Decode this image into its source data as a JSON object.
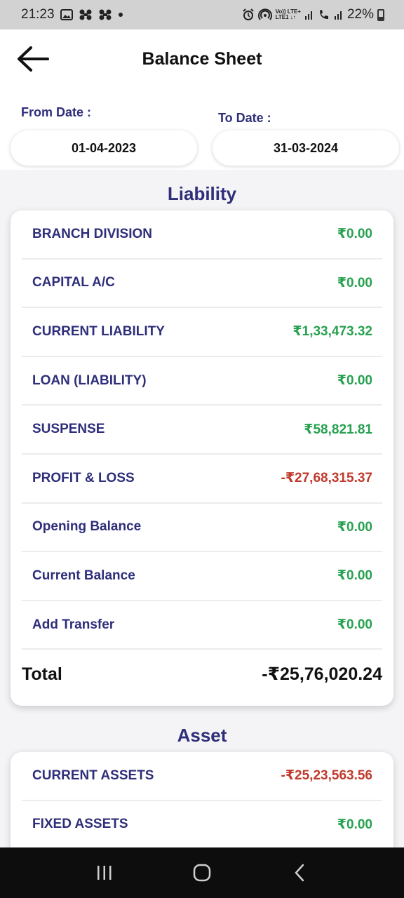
{
  "status_bar": {
    "time": "21:23",
    "network_top": "Vo)) LTE+",
    "network_bottom": "LTE1 ↓↑",
    "battery": "22%"
  },
  "header": {
    "title": "Balance Sheet"
  },
  "dates": {
    "from_label": "From Date :",
    "to_label": "To Date :",
    "from_value": "01-04-2023",
    "to_value": "31-03-2024"
  },
  "liability": {
    "title": "Liability",
    "rows": [
      {
        "name": "BRANCH DIVISION",
        "value": "₹0.00"
      },
      {
        "name": "CAPITAL A/C",
        "value": "₹0.00"
      },
      {
        "name": "CURRENT LIABILITY",
        "value": "₹1,33,473.32"
      },
      {
        "name": "LOAN (LIABILITY)",
        "value": "₹0.00"
      },
      {
        "name": "SUSPENSE",
        "value": "₹58,821.81"
      },
      {
        "name": "PROFIT & LOSS",
        "value": "-₹27,68,315.37"
      },
      {
        "name": "Opening Balance",
        "value": "₹0.00"
      },
      {
        "name": "Current Balance",
        "value": "₹0.00"
      },
      {
        "name": "Add Transfer",
        "value": "₹0.00"
      }
    ],
    "total_label": "Total",
    "total_value": "-₹25,76,020.24"
  },
  "asset": {
    "title": "Asset",
    "rows": [
      {
        "name": "CURRENT ASSETS",
        "value": "-₹25,23,563.56"
      },
      {
        "name": "FIXED ASSETS",
        "value": "₹0.00"
      }
    ]
  },
  "colors": {
    "accent": "#2e2e7a",
    "positive": "#27a150",
    "negative": "#c0392b"
  }
}
